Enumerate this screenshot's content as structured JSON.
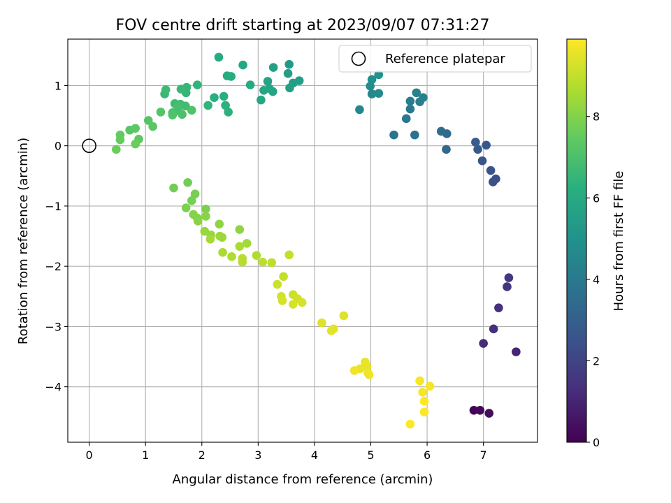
{
  "chart_data": {
    "type": "scatter",
    "title": "FOV centre drift starting at 2023/09/07 07:31:27",
    "xlabel": "Angular distance from reference (arcmin)",
    "ylabel": "Rotation from reference (arcmin)",
    "xlim": [
      -0.38,
      7.96
    ],
    "ylim": [
      -4.92,
      1.77
    ],
    "xticks": [
      0,
      1,
      2,
      3,
      4,
      5,
      6,
      7
    ],
    "yticks": [
      1,
      0,
      -1,
      -2,
      -3,
      -4
    ],
    "grid": true,
    "legend": {
      "placement": "top-right",
      "entries": [
        "Reference platepar"
      ]
    },
    "reference_point": {
      "x": 0,
      "y": 0
    },
    "colorbar": {
      "label": "Hours from first FF file",
      "colormap": "viridis",
      "range": [
        0,
        9.9
      ],
      "ticks": [
        0,
        2,
        4,
        6,
        8
      ]
    },
    "series": [
      {
        "points": [
          {
            "x": 6.83,
            "y": -4.39,
            "c": 0.1
          },
          {
            "x": 6.94,
            "y": -4.39,
            "c": 0.2
          },
          {
            "x": 7.1,
            "y": -4.44,
            "c": 0.3
          },
          {
            "x": 7.58,
            "y": -3.42,
            "c": 1.0
          },
          {
            "x": 7.0,
            "y": -3.28,
            "c": 1.2
          },
          {
            "x": 7.18,
            "y": -3.04,
            "c": 1.3
          },
          {
            "x": 7.27,
            "y": -2.69,
            "c": 1.4
          },
          {
            "x": 7.42,
            "y": -2.34,
            "c": 1.5
          },
          {
            "x": 7.45,
            "y": -2.19,
            "c": 1.6
          },
          {
            "x": 7.22,
            "y": -0.55,
            "c": 2.3
          },
          {
            "x": 7.17,
            "y": -0.6,
            "c": 2.4
          },
          {
            "x": 7.13,
            "y": -0.41,
            "c": 2.5
          },
          {
            "x": 6.98,
            "y": -0.25,
            "c": 2.6
          },
          {
            "x": 7.05,
            "y": 0.01,
            "c": 2.7
          },
          {
            "x": 6.9,
            "y": -0.06,
            "c": 2.8
          },
          {
            "x": 6.86,
            "y": 0.06,
            "c": 2.9
          },
          {
            "x": 6.34,
            "y": -0.06,
            "c": 3.3
          },
          {
            "x": 6.35,
            "y": 0.2,
            "c": 3.4
          },
          {
            "x": 6.25,
            "y": 0.24,
            "c": 3.5
          },
          {
            "x": 5.78,
            "y": 0.18,
            "c": 3.7
          },
          {
            "x": 5.41,
            "y": 0.18,
            "c": 3.8
          },
          {
            "x": 5.63,
            "y": 0.45,
            "c": 3.9
          },
          {
            "x": 5.7,
            "y": 0.61,
            "c": 4.0
          },
          {
            "x": 5.7,
            "y": 0.74,
            "c": 4.1
          },
          {
            "x": 5.87,
            "y": 0.73,
            "c": 4.2
          },
          {
            "x": 5.93,
            "y": 0.8,
            "c": 4.3
          },
          {
            "x": 5.81,
            "y": 0.88,
            "c": 4.4
          },
          {
            "x": 4.8,
            "y": 0.6,
            "c": 4.5
          },
          {
            "x": 5.02,
            "y": 0.86,
            "c": 4.6
          },
          {
            "x": 5.14,
            "y": 0.87,
            "c": 4.7
          },
          {
            "x": 4.99,
            "y": 0.99,
            "c": 4.8
          },
          {
            "x": 5.02,
            "y": 1.1,
            "c": 4.9
          },
          {
            "x": 5.14,
            "y": 1.18,
            "c": 5.0
          },
          {
            "x": 3.55,
            "y": 1.35,
            "c": 5.3
          },
          {
            "x": 3.53,
            "y": 1.2,
            "c": 5.4
          },
          {
            "x": 3.73,
            "y": 1.08,
            "c": 5.5
          },
          {
            "x": 3.62,
            "y": 1.04,
            "c": 5.5
          },
          {
            "x": 3.56,
            "y": 0.96,
            "c": 5.6
          },
          {
            "x": 3.27,
            "y": 1.3,
            "c": 5.6
          },
          {
            "x": 3.17,
            "y": 1.07,
            "c": 5.7
          },
          {
            "x": 3.2,
            "y": 0.95,
            "c": 5.7
          },
          {
            "x": 3.26,
            "y": 0.9,
            "c": 5.8
          },
          {
            "x": 3.1,
            "y": 0.92,
            "c": 5.8
          },
          {
            "x": 3.05,
            "y": 0.76,
            "c": 5.9
          },
          {
            "x": 2.73,
            "y": 1.34,
            "c": 5.9
          },
          {
            "x": 2.86,
            "y": 1.01,
            "c": 6.0
          },
          {
            "x": 2.3,
            "y": 1.47,
            "c": 6.0
          },
          {
            "x": 2.45,
            "y": 1.16,
            "c": 6.1
          },
          {
            "x": 2.52,
            "y": 1.15,
            "c": 6.1
          },
          {
            "x": 2.39,
            "y": 0.82,
            "c": 6.2
          },
          {
            "x": 2.22,
            "y": 0.8,
            "c": 6.2
          },
          {
            "x": 2.42,
            "y": 0.67,
            "c": 6.3
          },
          {
            "x": 2.47,
            "y": 0.56,
            "c": 6.3
          },
          {
            "x": 2.11,
            "y": 0.67,
            "c": 6.4
          },
          {
            "x": 1.92,
            "y": 1.01,
            "c": 6.4
          },
          {
            "x": 1.73,
            "y": 0.97,
            "c": 6.5
          },
          {
            "x": 1.72,
            "y": 0.88,
            "c": 6.5
          },
          {
            "x": 1.63,
            "y": 0.94,
            "c": 6.6
          },
          {
            "x": 1.34,
            "y": 0.86,
            "c": 6.6
          },
          {
            "x": 1.36,
            "y": 0.93,
            "c": 6.7
          },
          {
            "x": 1.52,
            "y": 0.7,
            "c": 6.7
          },
          {
            "x": 1.62,
            "y": 0.69,
            "c": 6.8
          },
          {
            "x": 1.71,
            "y": 0.66,
            "c": 6.8
          },
          {
            "x": 1.57,
            "y": 0.65,
            "c": 6.9
          },
          {
            "x": 1.58,
            "y": 0.58,
            "c": 6.9
          },
          {
            "x": 1.65,
            "y": 0.52,
            "c": 7.0
          },
          {
            "x": 1.48,
            "y": 0.55,
            "c": 7.0
          },
          {
            "x": 1.48,
            "y": 0.51,
            "c": 7.1
          },
          {
            "x": 1.82,
            "y": 0.59,
            "c": 7.1
          },
          {
            "x": 1.27,
            "y": 0.56,
            "c": 7.2
          },
          {
            "x": 1.05,
            "y": 0.42,
            "c": 7.2
          },
          {
            "x": 1.13,
            "y": 0.32,
            "c": 7.3
          },
          {
            "x": 0.72,
            "y": 0.26,
            "c": 7.3
          },
          {
            "x": 0.82,
            "y": 0.29,
            "c": 7.4
          },
          {
            "x": 0.88,
            "y": 0.11,
            "c": 7.4
          },
          {
            "x": 0.55,
            "y": 0.18,
            "c": 7.5
          },
          {
            "x": 0.55,
            "y": 0.1,
            "c": 7.5
          },
          {
            "x": 0.82,
            "y": 0.03,
            "c": 7.6
          },
          {
            "x": 0.48,
            "y": -0.06,
            "c": 7.6
          },
          {
            "x": 1.5,
            "y": -0.7,
            "c": 7.7
          },
          {
            "x": 1.75,
            "y": -0.61,
            "c": 7.7
          },
          {
            "x": 1.88,
            "y": -0.8,
            "c": 7.8
          },
          {
            "x": 1.82,
            "y": -0.91,
            "c": 7.8
          },
          {
            "x": 1.72,
            "y": -1.03,
            "c": 7.9
          },
          {
            "x": 2.07,
            "y": -1.05,
            "c": 7.9
          },
          {
            "x": 1.85,
            "y": -1.14,
            "c": 8.0
          },
          {
            "x": 1.92,
            "y": -1.2,
            "c": 8.0
          },
          {
            "x": 1.93,
            "y": -1.25,
            "c": 8.1
          },
          {
            "x": 2.07,
            "y": -1.17,
            "c": 8.1
          },
          {
            "x": 2.31,
            "y": -1.3,
            "c": 8.2
          },
          {
            "x": 2.67,
            "y": -1.39,
            "c": 8.2
          },
          {
            "x": 2.05,
            "y": -1.42,
            "c": 8.3
          },
          {
            "x": 2.16,
            "y": -1.48,
            "c": 8.3
          },
          {
            "x": 2.32,
            "y": -1.5,
            "c": 8.4
          },
          {
            "x": 2.36,
            "y": -1.52,
            "c": 8.4
          },
          {
            "x": 2.15,
            "y": -1.55,
            "c": 8.5
          },
          {
            "x": 2.8,
            "y": -1.62,
            "c": 8.5
          },
          {
            "x": 2.67,
            "y": -1.67,
            "c": 8.6
          },
          {
            "x": 2.37,
            "y": -1.77,
            "c": 8.6
          },
          {
            "x": 2.53,
            "y": -1.84,
            "c": 8.7
          },
          {
            "x": 2.97,
            "y": -1.82,
            "c": 8.7
          },
          {
            "x": 2.72,
            "y": -1.87,
            "c": 8.8
          },
          {
            "x": 2.72,
            "y": -1.93,
            "c": 8.8
          },
          {
            "x": 3.08,
            "y": -1.93,
            "c": 8.9
          },
          {
            "x": 3.24,
            "y": -1.94,
            "c": 8.9
          },
          {
            "x": 3.55,
            "y": -1.81,
            "c": 9.0
          },
          {
            "x": 3.45,
            "y": -2.17,
            "c": 9.0
          },
          {
            "x": 3.34,
            "y": -2.3,
            "c": 9.1
          },
          {
            "x": 3.62,
            "y": -2.47,
            "c": 9.1
          },
          {
            "x": 3.41,
            "y": -2.5,
            "c": 9.2
          },
          {
            "x": 3.7,
            "y": -2.54,
            "c": 9.2
          },
          {
            "x": 3.43,
            "y": -2.57,
            "c": 9.3
          },
          {
            "x": 3.78,
            "y": -2.6,
            "c": 9.3
          },
          {
            "x": 3.62,
            "y": -2.63,
            "c": 9.3
          },
          {
            "x": 4.13,
            "y": -2.94,
            "c": 9.4
          },
          {
            "x": 4.52,
            "y": -2.82,
            "c": 9.4
          },
          {
            "x": 4.34,
            "y": -3.04,
            "c": 9.5
          },
          {
            "x": 4.3,
            "y": -3.07,
            "c": 9.5
          },
          {
            "x": 4.9,
            "y": -3.59,
            "c": 9.6
          },
          {
            "x": 4.93,
            "y": -3.66,
            "c": 9.6
          },
          {
            "x": 4.81,
            "y": -3.7,
            "c": 9.6
          },
          {
            "x": 4.71,
            "y": -3.73,
            "c": 9.7
          },
          {
            "x": 4.95,
            "y": -3.77,
            "c": 9.7
          },
          {
            "x": 4.97,
            "y": -3.8,
            "c": 9.7
          },
          {
            "x": 5.87,
            "y": -3.9,
            "c": 9.8
          },
          {
            "x": 6.05,
            "y": -3.99,
            "c": 9.8
          },
          {
            "x": 5.92,
            "y": -4.09,
            "c": 9.8
          },
          {
            "x": 5.95,
            "y": -4.24,
            "c": 9.9
          },
          {
            "x": 5.95,
            "y": -4.42,
            "c": 9.9
          },
          {
            "x": 5.7,
            "y": -4.62,
            "c": 9.9
          }
        ]
      }
    ]
  }
}
